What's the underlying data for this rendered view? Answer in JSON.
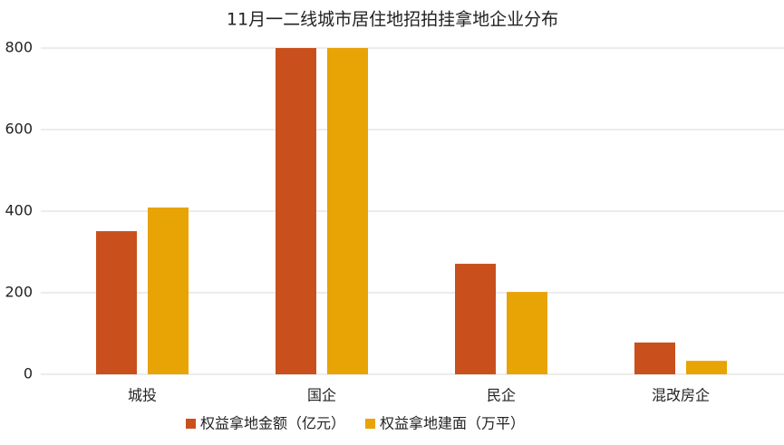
{
  "chart_data": {
    "type": "bar",
    "title": "11月一二线城市居住地招拍挂拿地企业分布",
    "categories": [
      "城投",
      "国企",
      "民企",
      "混改房企"
    ],
    "series": [
      {
        "name": "权益拿地金额（亿元）",
        "color": "#c9501c",
        "values": [
          351,
          800,
          271,
          78
        ]
      },
      {
        "name": "权益拿地建面（万平）",
        "color": "#e8a305",
        "values": [
          409,
          800,
          202,
          33
        ]
      }
    ],
    "ylim": [
      0,
      800
    ],
    "yticks": [
      0,
      200,
      400,
      600,
      800
    ],
    "grid": true,
    "legend": "bottom"
  }
}
